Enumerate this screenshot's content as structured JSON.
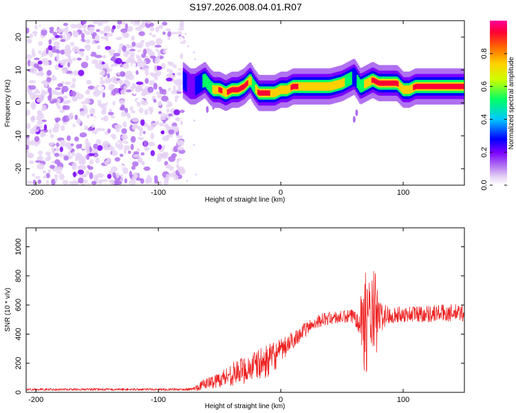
{
  "title": "S197.2026.008.04.01.R07",
  "chart_data": [
    {
      "id": "spectrogram",
      "type": "heatmap",
      "xlabel": "Height of straight line (km)",
      "ylabel": "Frequency (Hz)",
      "xlim": [
        -208,
        150
      ],
      "ylim": [
        -25,
        25
      ],
      "xticks": [
        -200,
        -100,
        0,
        100
      ],
      "yticks": [
        -20,
        -10,
        0,
        10,
        20
      ],
      "noise_region_x": [
        -208,
        -80
      ],
      "colorbar": {
        "label": "Normalized spectral amplitude",
        "range": [
          0.0,
          1.0
        ],
        "ticks": [
          0.0,
          0.2,
          0.4,
          0.6,
          0.8
        ],
        "tick_labels": [
          "0.0",
          "0.2",
          "0.4",
          "0.6",
          "0.8"
        ],
        "colors": [
          "#ffffff",
          "#e6d3f5",
          "#b070f0",
          "#7a00ff",
          "#0000ff",
          "#00c8ff",
          "#00ff66",
          "#ccff00",
          "#ffd000",
          "#ff6600",
          "#ff0033",
          "#ff0099"
        ]
      },
      "tone_track": {
        "x": [
          -80,
          -74,
          -70,
          -66,
          -62,
          -58,
          -55,
          -50,
          -45,
          -40,
          -35,
          -30,
          -25,
          -22,
          -18,
          -15,
          -10,
          -5,
          0,
          5,
          10,
          20,
          30,
          40,
          50,
          55,
          60,
          65,
          70,
          75,
          80,
          85,
          90,
          95,
          100,
          105,
          110,
          120,
          130,
          140,
          150
        ],
        "freq_hz": [
          7,
          5,
          5,
          6,
          7,
          5,
          4,
          4,
          3,
          4,
          4,
          5,
          7,
          5,
          3,
          3,
          3,
          3,
          4,
          4,
          5,
          5,
          5,
          5,
          6,
          7,
          8,
          5,
          6,
          7,
          6,
          6,
          6,
          6,
          4,
          4,
          5,
          5,
          5,
          5,
          5
        ],
        "amplitude": [
          0.45,
          0.35,
          0.4,
          0.45,
          0.55,
          0.6,
          0.7,
          0.8,
          0.75,
          0.85,
          0.8,
          0.9,
          0.7,
          0.6,
          0.85,
          0.9,
          0.8,
          0.7,
          0.75,
          0.75,
          0.8,
          0.75,
          0.75,
          0.75,
          0.7,
          0.55,
          0.45,
          0.55,
          0.7,
          0.8,
          0.9,
          0.95,
          0.95,
          0.8,
          0.7,
          0.75,
          0.8,
          0.95,
          0.95,
          0.85,
          0.8
        ]
      }
    },
    {
      "id": "snr",
      "type": "line",
      "xlabel": "Height of straight line (km)",
      "ylabel": "SNR (10 * v/v)",
      "xlim": [
        -208,
        150
      ],
      "ylim": [
        0,
        1130
      ],
      "xticks": [
        -200,
        -100,
        0,
        100
      ],
      "yticks": [
        0,
        200,
        400,
        600,
        800,
        1000
      ],
      "color": "#ee2222",
      "series": [
        {
          "name": "SNR",
          "x": [
            -208,
            -190,
            -170,
            -150,
            -130,
            -110,
            -90,
            -80,
            -72,
            -68,
            -62,
            -56,
            -50,
            -44,
            -40,
            -35,
            -30,
            -25,
            -20,
            -15,
            -10,
            -5,
            0,
            5,
            10,
            15,
            20,
            25,
            30,
            40,
            50,
            60,
            64,
            66,
            68,
            70,
            72,
            74,
            76,
            78,
            80,
            90,
            100,
            110,
            120,
            130,
            140,
            150
          ],
          "center": [
            20,
            20,
            20,
            20,
            20,
            20,
            20,
            20,
            22,
            35,
            60,
            70,
            90,
            110,
            125,
            140,
            155,
            170,
            185,
            200,
            220,
            250,
            280,
            320,
            360,
            400,
            430,
            460,
            490,
            510,
            515,
            520,
            520,
            510,
            470,
            490,
            510,
            520,
            500,
            510,
            520,
            530,
            535,
            540,
            540,
            545,
            545,
            545
          ],
          "noise": [
            8,
            8,
            8,
            8,
            8,
            8,
            8,
            8,
            10,
            25,
            35,
            45,
            55,
            70,
            80,
            85,
            95,
            100,
            105,
            110,
            110,
            100,
            85,
            70,
            60,
            55,
            50,
            45,
            45,
            45,
            45,
            55,
            110,
            240,
            330,
            350,
            300,
            230,
            380,
            290,
            120,
            55,
            55,
            60,
            60,
            60,
            60,
            60
          ]
        }
      ]
    }
  ]
}
